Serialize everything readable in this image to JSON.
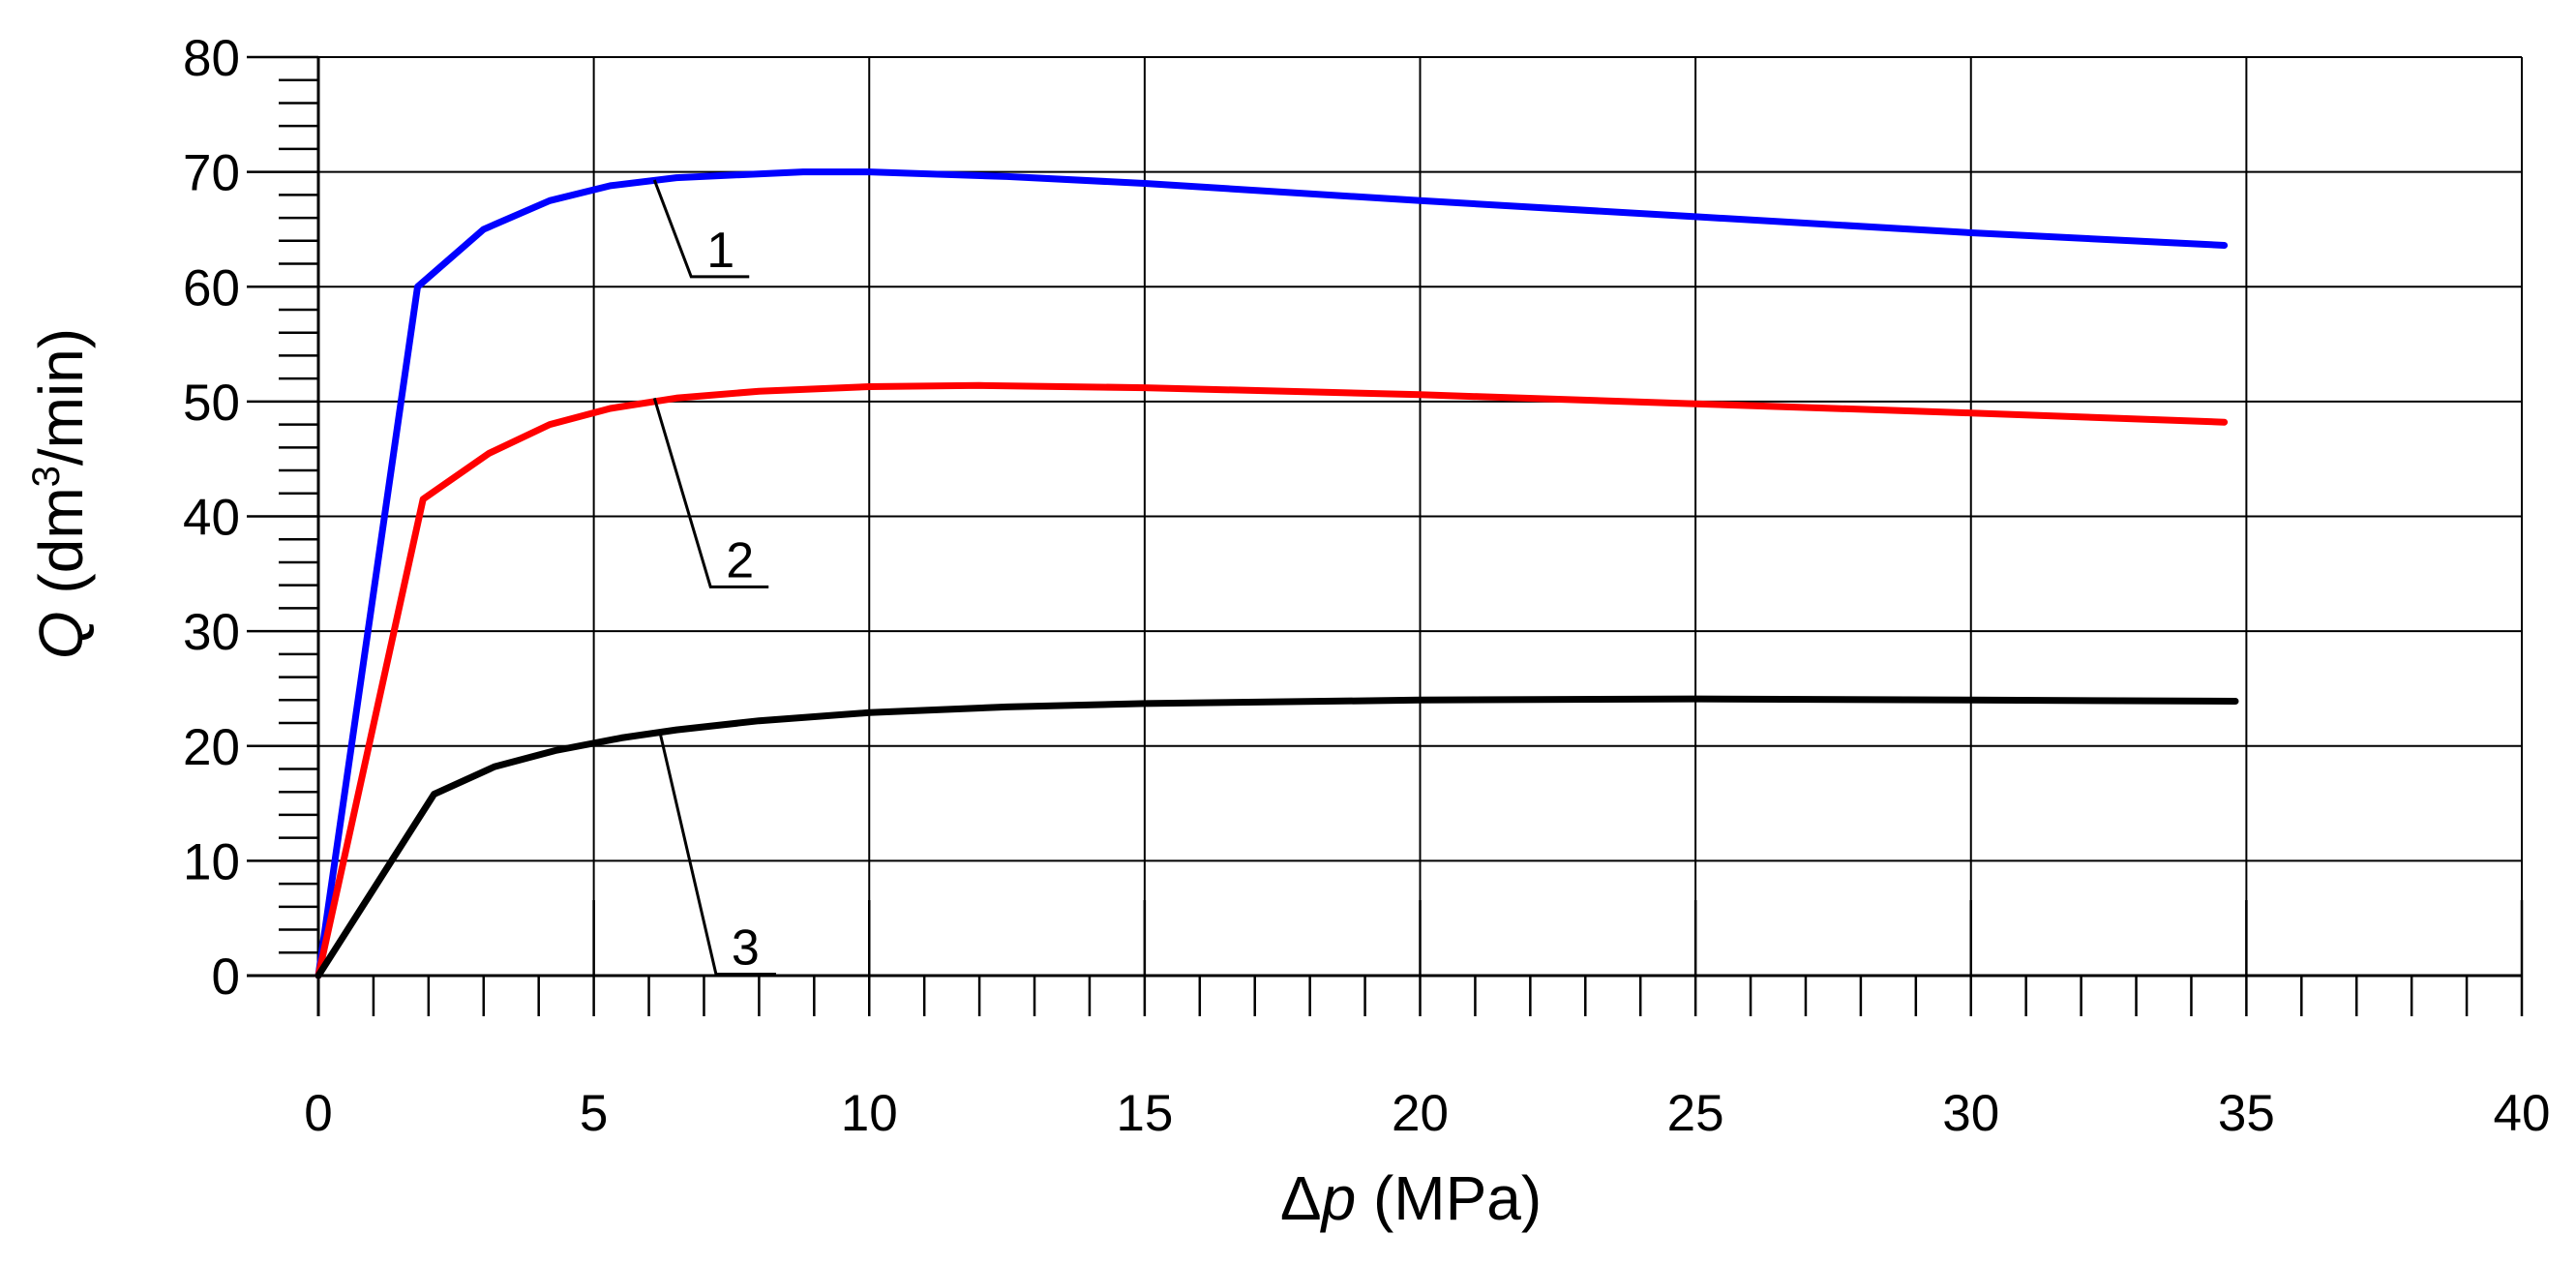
{
  "chart_data": {
    "type": "line",
    "title": "",
    "xlabel": {
      "symbol": "Δ",
      "var": "p",
      "unit": " (MPa)"
    },
    "ylabel": {
      "var": "Q",
      "pre": " (dm",
      "sup": "3",
      "post": "/min)"
    },
    "xlim": [
      0,
      40
    ],
    "ylim": [
      0,
      80
    ],
    "x_ticks": [
      "0",
      "5",
      "10",
      "15",
      "20",
      "25",
      "30",
      "35",
      "40"
    ],
    "y_ticks": [
      "0",
      "10",
      "20",
      "30",
      "40",
      "50",
      "60",
      "70",
      "80"
    ],
    "grid": true,
    "series": [
      {
        "name": "1",
        "color": "#0000ff",
        "x": [
          0,
          1.8,
          3,
          4.2,
          5.3,
          6.5,
          8.8,
          10,
          12.5,
          15,
          20,
          25,
          30,
          34.6
        ],
        "y": [
          0,
          60,
          65,
          67.5,
          68.8,
          69.5,
          70,
          70,
          69.6,
          69,
          67.5,
          66.1,
          64.7,
          63.6
        ],
        "callout": {
          "label": "1",
          "x": 6.1,
          "y": 69.3
        }
      },
      {
        "name": "2",
        "color": "#ff0000",
        "x": [
          0,
          1.9,
          3.1,
          4.2,
          5.3,
          6.5,
          8,
          10,
          12,
          15,
          20,
          25,
          30,
          34.6
        ],
        "y": [
          0,
          41.5,
          45.5,
          48,
          49.4,
          50.3,
          50.9,
          51.3,
          51.4,
          51.2,
          50.6,
          49.8,
          49,
          48.2
        ],
        "callout": {
          "label": "2",
          "x": 6.1,
          "y": 50.3
        }
      },
      {
        "name": "3",
        "color": "#000000",
        "x": [
          0,
          2.1,
          3.2,
          4.3,
          5.5,
          6.5,
          8,
          10,
          12.5,
          15,
          20,
          25,
          30,
          34.8
        ],
        "y": [
          0,
          15.8,
          18.2,
          19.6,
          20.7,
          21.4,
          22.2,
          22.9,
          23.4,
          23.7,
          24,
          24.1,
          24,
          23.9
        ],
        "callout": {
          "label": "3",
          "x": 6.2,
          "y": 21.2
        }
      }
    ]
  }
}
